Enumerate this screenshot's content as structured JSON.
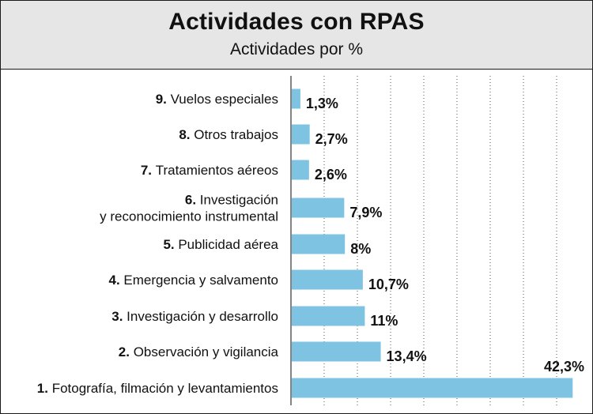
{
  "header": {
    "title": "Actividades con RPAS",
    "subtitle": "Actividades por %"
  },
  "colors": {
    "bar": "#7ec4e2",
    "header_bg": "#e6e6e6",
    "grid": "#555555"
  },
  "chart_data": {
    "type": "bar",
    "orientation": "horizontal",
    "title": "Actividades con RPAS",
    "subtitle": "Actividades por %",
    "xlim": [
      0,
      45
    ],
    "grid": true,
    "grid_style": "dotted vertical",
    "categories": [
      {
        "num": "9.",
        "lines": [
          "Vuelos  especiales"
        ]
      },
      {
        "num": "8.",
        "lines": [
          "Otros trabajos"
        ]
      },
      {
        "num": "7.",
        "lines": [
          "Tratamientos aéreos"
        ]
      },
      {
        "num": "6.",
        "lines": [
          "Investigación",
          "y reconocimiento instrumental"
        ]
      },
      {
        "num": "5.",
        "lines": [
          "Publicidad aérea"
        ]
      },
      {
        "num": "4.",
        "lines": [
          "Emergencia y salvamento"
        ]
      },
      {
        "num": "3.",
        "lines": [
          "Investigación y desarrollo"
        ]
      },
      {
        "num": "2.",
        "lines": [
          "Observación y vigilancia"
        ]
      },
      {
        "num": "1.",
        "lines": [
          "Fotografía, filmación y levantamientos"
        ]
      }
    ],
    "values": [
      1.3,
      2.7,
      2.6,
      7.9,
      8,
      10.7,
      11,
      13.4,
      42.3
    ],
    "value_labels": [
      "1,3%",
      "2,7%",
      "2,6%",
      "7,9%",
      "8%",
      "10,7%",
      "11%",
      "13,4%",
      "42,3%"
    ]
  }
}
